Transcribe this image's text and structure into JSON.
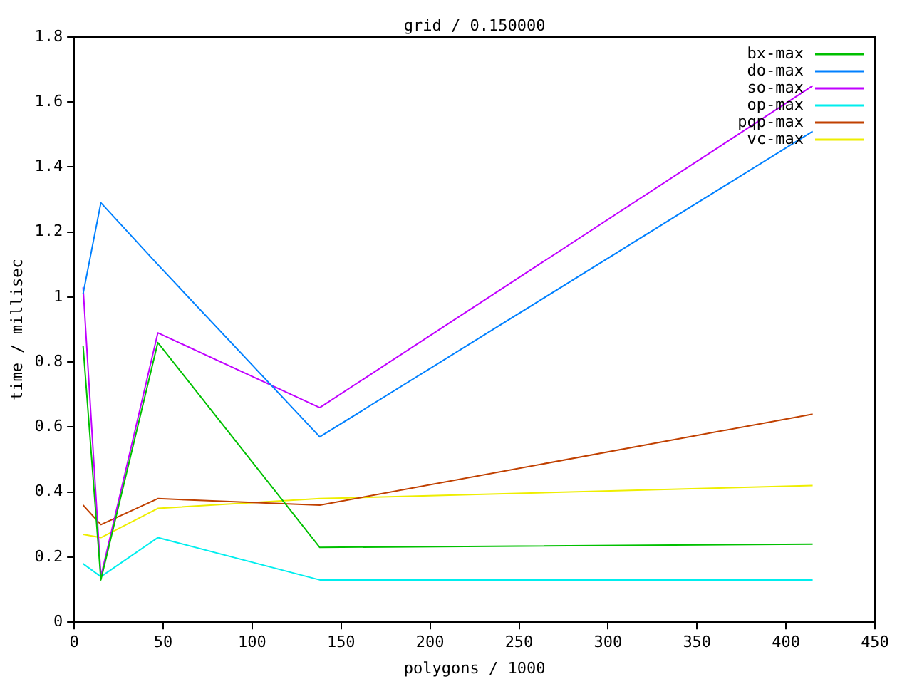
{
  "chart_data": {
    "type": "line",
    "title": "grid / 0.150000",
    "xlabel": "polygons / 1000",
    "ylabel": "time / millisec",
    "x": [
      5,
      15,
      47,
      138,
      415
    ],
    "series": [
      {
        "name": "bx-max",
        "color": "#00c000",
        "values": [
          0.85,
          0.13,
          0.86,
          0.23,
          0.24
        ]
      },
      {
        "name": "do-max",
        "color": "#0080ff",
        "values": [
          1.01,
          1.29,
          1.1,
          0.57,
          1.51
        ]
      },
      {
        "name": "so-max",
        "color": "#c000ff",
        "values": [
          1.03,
          0.14,
          0.89,
          0.66,
          1.65
        ]
      },
      {
        "name": "op-max",
        "color": "#00eeee",
        "values": [
          0.18,
          0.14,
          0.26,
          0.13,
          0.13
        ]
      },
      {
        "name": "pqp-max",
        "color": "#c04000",
        "values": [
          0.36,
          0.3,
          0.38,
          0.36,
          0.64
        ]
      },
      {
        "name": "vc-max",
        "color": "#eeee00",
        "values": [
          0.27,
          0.26,
          0.35,
          0.38,
          0.42
        ]
      }
    ],
    "xlim": [
      0,
      450
    ],
    "xticks": [
      0,
      50,
      100,
      150,
      200,
      250,
      300,
      350,
      400,
      450
    ],
    "ylim": [
      0,
      1.8
    ],
    "yticks": [
      0,
      0.2,
      0.4,
      0.6,
      0.8,
      1,
      1.2,
      1.4,
      1.6,
      1.8
    ],
    "grid": false,
    "legend": "top right",
    "marker": "none",
    "line_style": "solid"
  }
}
